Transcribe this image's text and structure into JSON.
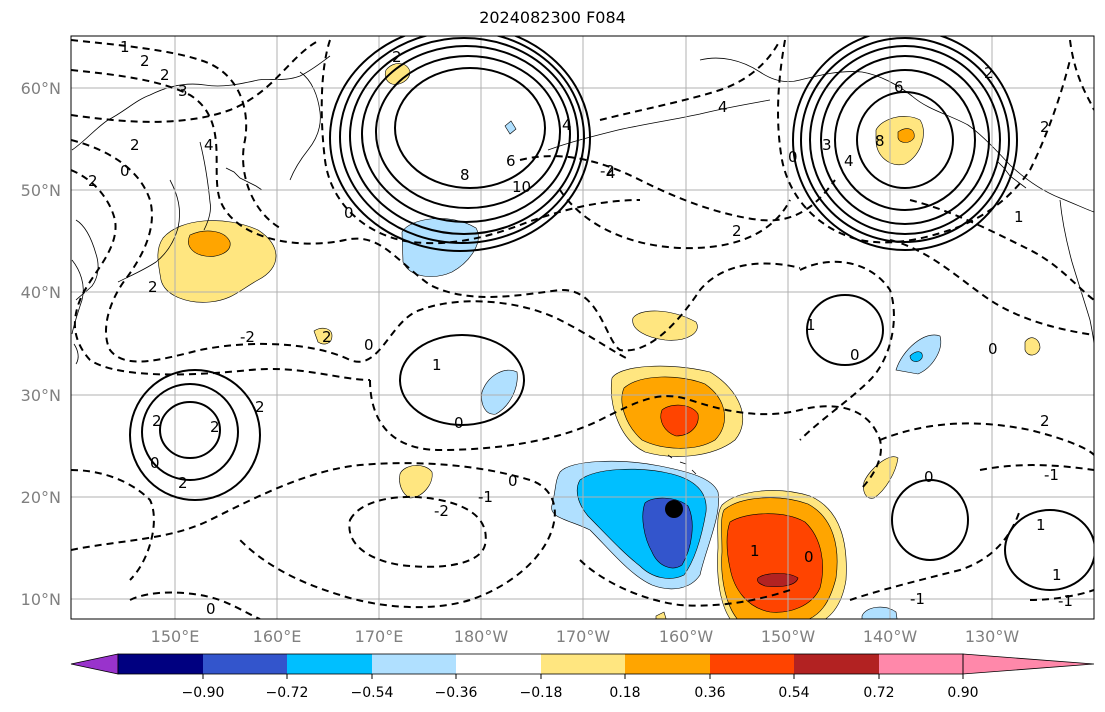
{
  "title": "2024082300 F084",
  "map": {
    "lon_labels": [
      "150°E",
      "160°E",
      "170°E",
      "180°W",
      "170°W",
      "160°W",
      "150°W",
      "140°W",
      "130°W"
    ],
    "lat_labels": [
      "10°N",
      "20°N",
      "30°N",
      "40°N",
      "50°N",
      "60°N"
    ],
    "contour_labels": [
      "1",
      "2",
      "2",
      "3",
      "2",
      "4",
      "0",
      "2",
      "2",
      "0",
      "-2",
      "2",
      "-2",
      "0",
      "2",
      "2",
      "2",
      "2",
      "0",
      "1",
      "1",
      "0",
      "0",
      "-2",
      "-1",
      "0",
      "4",
      "6",
      "8",
      "10",
      "2",
      "4",
      "8",
      "3",
      "4",
      "6",
      "4",
      "2",
      "2",
      "2",
      "1",
      "0",
      "0",
      "0",
      "1",
      "-1",
      "0",
      "0",
      "1",
      "-1",
      "-1",
      "2",
      "1"
    ],
    "marker": "storm-center"
  },
  "colorbar": {
    "tick_labels": [
      "−0.90",
      "−0.72",
      "−0.54",
      "−0.36",
      "−0.18",
      "0.18",
      "0.36",
      "0.54",
      "0.72",
      "0.90"
    ],
    "colors": [
      "#9933cc",
      "#000080",
      "#3355cc",
      "#00bfff",
      "#b0e0ff",
      "#ffffff",
      "#ffe680",
      "#ffa500",
      "#ff4400",
      "#b22222",
      "#ff88aa"
    ]
  }
}
